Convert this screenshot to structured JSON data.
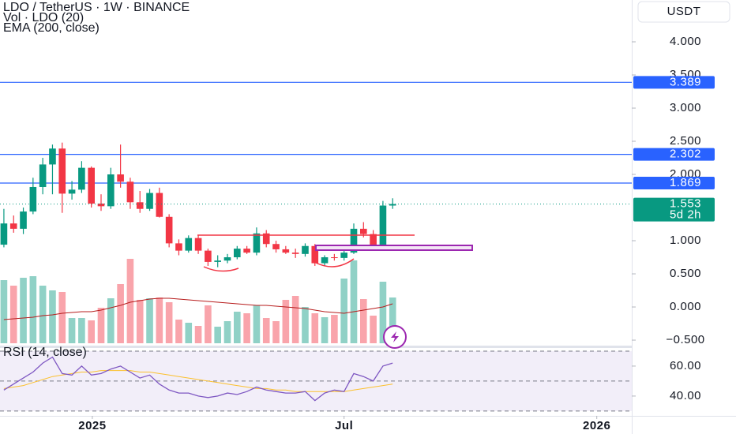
{
  "chart_data": {
    "type": "candlestick",
    "title": "LDO / TetherUS · 1W · BINANCE",
    "subtitle": "Vol · LDO (20)",
    "indicator_label": "EMA (200, close)",
    "currency": "USDT",
    "up_color": "#089981",
    "down_color": "#f23645",
    "xlim": [
      -0.4,
      64.6
    ],
    "xticks": [
      {
        "value": 9.1,
        "label": "2025"
      },
      {
        "value": 35,
        "label": "Jul"
      },
      {
        "value": 61,
        "label": "2026"
      }
    ],
    "ylim": [
      -0.571,
      4.631
    ],
    "yticks": [
      {
        "value": 4,
        "label": "4.000"
      },
      {
        "value": 3.5,
        "label": "3.500"
      },
      {
        "value": 3,
        "label": "3.000"
      },
      {
        "value": 2.5,
        "label": "2.500"
      },
      {
        "value": 2,
        "label": "2.000"
      },
      {
        "value": 1,
        "label": "1.000"
      },
      {
        "value": 0.5,
        "label": "0.500"
      },
      {
        "value": 0,
        "label": "0.000"
      },
      {
        "value": -0.5,
        "label": "−0.500"
      }
    ],
    "levels": [
      3.389,
      2.302,
      1.869
    ],
    "last_price": 1.553,
    "countdown": "5d 2h",
    "candles": {
      "open": [
        0.94,
        1.26,
        1.18,
        1.44,
        1.81,
        2.15,
        2.39,
        1.71,
        1.77,
        2.1,
        1.56,
        1.52,
        2.0,
        1.89,
        1.58,
        1.48,
        1.72,
        1.36,
        0.96,
        0.85,
        1.04,
        0.85,
        0.68,
        0.7,
        0.75,
        0.88,
        0.82,
        1.11,
        0.95,
        0.87,
        0.82,
        0.8,
        0.92,
        0.66,
        0.75,
        0.74,
        0.82,
        1.18,
        1.1,
        0.9,
        1.53
      ],
      "high": [
        1.48,
        1.38,
        1.5,
        1.95,
        2.25,
        2.45,
        2.48,
        1.9,
        2.2,
        2.12,
        1.7,
        2.1,
        2.45,
        1.95,
        1.75,
        1.78,
        1.8,
        1.4,
        1.02,
        1.08,
        1.08,
        0.88,
        0.78,
        0.8,
        0.92,
        0.92,
        1.2,
        1.16,
        1.0,
        0.92,
        0.88,
        0.96,
        0.95,
        0.78,
        0.8,
        0.86,
        1.26,
        1.28,
        1.16,
        1.6,
        1.64
      ],
      "low": [
        0.9,
        1.12,
        1.1,
        1.4,
        1.7,
        1.7,
        1.42,
        1.62,
        1.72,
        1.5,
        1.45,
        1.48,
        1.8,
        1.48,
        1.42,
        1.45,
        1.35,
        0.9,
        0.78,
        0.82,
        0.8,
        0.62,
        0.6,
        0.66,
        0.72,
        0.8,
        0.78,
        0.9,
        0.82,
        0.8,
        0.74,
        0.76,
        0.62,
        0.62,
        0.7,
        0.7,
        0.8,
        1.05,
        0.86,
        0.88,
        1.48
      ],
      "close": [
        1.26,
        1.18,
        1.44,
        1.81,
        2.15,
        2.39,
        1.71,
        1.77,
        2.1,
        1.56,
        1.52,
        2.0,
        1.89,
        1.58,
        1.48,
        1.72,
        1.36,
        0.96,
        0.85,
        1.04,
        0.85,
        0.68,
        0.7,
        0.75,
        0.88,
        0.82,
        1.11,
        0.95,
        0.87,
        0.82,
        0.8,
        0.92,
        0.66,
        0.75,
        0.74,
        0.82,
        1.18,
        1.1,
        0.9,
        1.53,
        1.553
      ]
    },
    "volume": {
      "ylim": [
        0,
        150
      ],
      "values": [
        80,
        73,
        83,
        85,
        73,
        67,
        65,
        32,
        32,
        29,
        45,
        57,
        75,
        107,
        55,
        57,
        58,
        52,
        30,
        26,
        22,
        48,
        21,
        28,
        40,
        38,
        48,
        32,
        28,
        55,
        60,
        46,
        38,
        33,
        36,
        82,
        105,
        56,
        35,
        78,
        58
      ],
      "ma": [
        30,
        31,
        32,
        33,
        35,
        36,
        38,
        39,
        40,
        40,
        42,
        45,
        48,
        52,
        54,
        56,
        57,
        57,
        56,
        55,
        54,
        53,
        52,
        51,
        50,
        49,
        48,
        48,
        47,
        46,
        45,
        44,
        42,
        40,
        39,
        38,
        40,
        42,
        44,
        46,
        50
      ]
    },
    "rsi": {
      "label": "RSI (14, close)",
      "ylim": [
        26.8,
        72.6
      ],
      "yticks": [
        {
          "value": 60,
          "label": "60.00"
        },
        {
          "value": 40,
          "label": "40.00"
        }
      ],
      "levels": [
        70,
        50,
        30
      ],
      "values": [
        44,
        48,
        52,
        56,
        62,
        66,
        55,
        54,
        60,
        54,
        55,
        58,
        60,
        56,
        52,
        54,
        48,
        44,
        42,
        42,
        40,
        39,
        40,
        42,
        41,
        43,
        46,
        44,
        43,
        42,
        42,
        43,
        37,
        42,
        44,
        43,
        55,
        53,
        50,
        60,
        62
      ],
      "ma": [
        45,
        46,
        47,
        49,
        51,
        53,
        54,
        55,
        56,
        56,
        57,
        57,
        57,
        57,
        56,
        56,
        55,
        54,
        53,
        52,
        51,
        50,
        49,
        48,
        47,
        46,
        45,
        45,
        44,
        44,
        43,
        43,
        43,
        43,
        43,
        43,
        44,
        45,
        46,
        47,
        48
      ]
    }
  }
}
